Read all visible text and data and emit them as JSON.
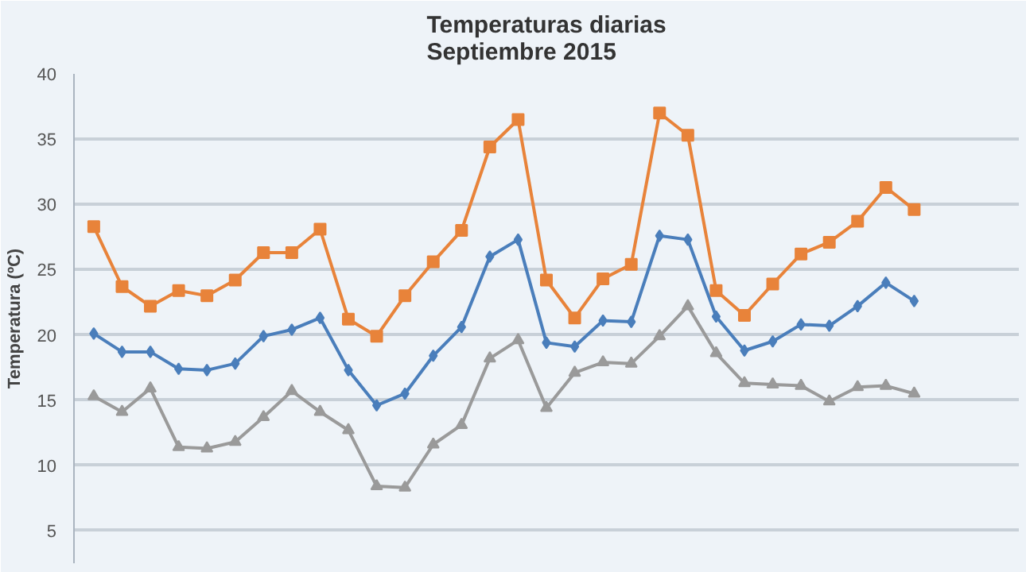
{
  "chart_data": {
    "type": "line",
    "title": "Temperaturas diarias\nSeptiembre 2015",
    "ylabel": "Temperatura (ºC)",
    "categories": [
      null,
      null,
      null,
      null,
      null,
      null,
      null,
      null,
      null,
      null,
      null,
      null,
      null,
      null,
      null,
      null,
      null,
      null,
      null,
      null,
      null,
      null,
      null,
      null,
      null,
      null,
      null,
      null,
      null,
      null
    ],
    "ylim": [
      2.5,
      40
    ],
    "yticks": [
      5,
      10,
      15,
      20,
      25,
      30,
      35,
      40
    ],
    "grid": "y",
    "series": [
      {
        "color": "#e8833a",
        "marker": "square",
        "values": [
          28.3,
          23.7,
          22.2,
          23.4,
          23.0,
          24.2,
          26.3,
          26.3,
          28.1,
          21.2,
          19.9,
          23.0,
          25.6,
          28.0,
          34.4,
          36.5,
          24.2,
          21.3,
          24.3,
          25.4,
          37.0,
          35.3,
          23.4,
          21.5,
          23.9,
          26.2,
          27.1,
          28.7,
          31.3,
          29.6
        ]
      },
      {
        "color": "#4a7ebb",
        "marker": "diamond",
        "values": [
          20.1,
          18.7,
          18.7,
          17.4,
          17.3,
          17.8,
          19.9,
          20.4,
          21.3,
          17.3,
          14.6,
          15.5,
          18.4,
          20.6,
          26.0,
          27.3,
          19.4,
          19.1,
          21.1,
          21.0,
          27.6,
          27.3,
          21.4,
          18.8,
          19.5,
          20.8,
          20.7,
          22.2,
          24.0,
          22.6
        ]
      },
      {
        "color": "#9a9a9a",
        "marker": "triangle",
        "values": [
          15.3,
          14.1,
          15.9,
          11.4,
          11.3,
          11.8,
          13.7,
          15.7,
          14.1,
          12.7,
          8.4,
          8.3,
          11.6,
          13.1,
          18.2,
          19.6,
          14.4,
          17.1,
          17.9,
          17.8,
          19.9,
          22.2,
          18.6,
          16.3,
          16.2,
          16.1,
          14.9,
          16.0,
          16.1,
          15.5
        ]
      }
    ]
  }
}
